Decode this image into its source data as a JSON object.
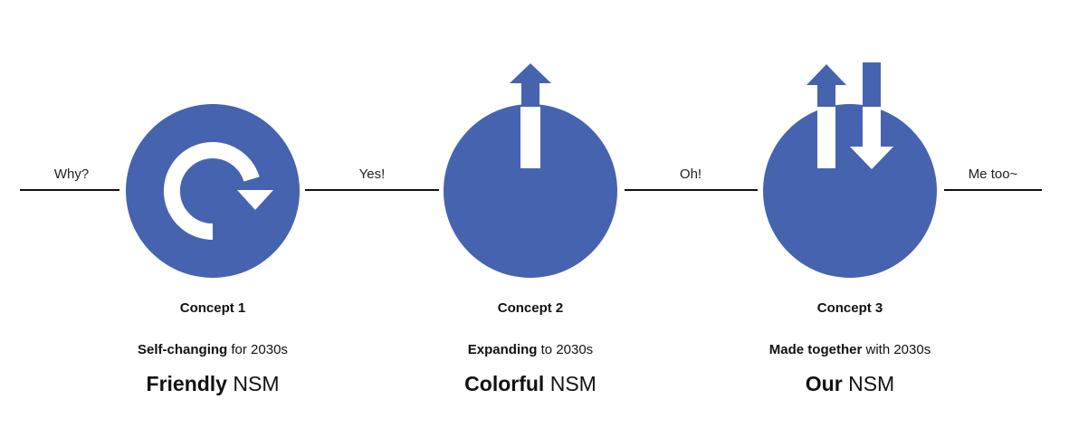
{
  "colors": {
    "circle": "#4663b0",
    "line": "#111111",
    "arrow": "#ffffff"
  },
  "connectors": {
    "why": "Why?",
    "yes": "Yes!",
    "oh": "Oh!",
    "me_too": "Me too~"
  },
  "concepts": [
    {
      "title": "Concept 1",
      "tagline_bold": "Self-changing",
      "tagline_rest": " for 2030s",
      "name_bold": "Friendly",
      "name_rest": " NSM",
      "icon": "refresh-icon"
    },
    {
      "title": "Concept 2",
      "tagline_bold": "Expanding",
      "tagline_rest": " to 2030s",
      "name_bold": "Colorful",
      "name_rest": " NSM",
      "icon": "up-arrow-icon"
    },
    {
      "title": "Concept 3",
      "tagline_bold": "Made together",
      "tagline_rest": " with 2030s",
      "name_bold": "Our",
      "name_rest": " NSM",
      "icon": "up-down-arrows-icon"
    }
  ]
}
